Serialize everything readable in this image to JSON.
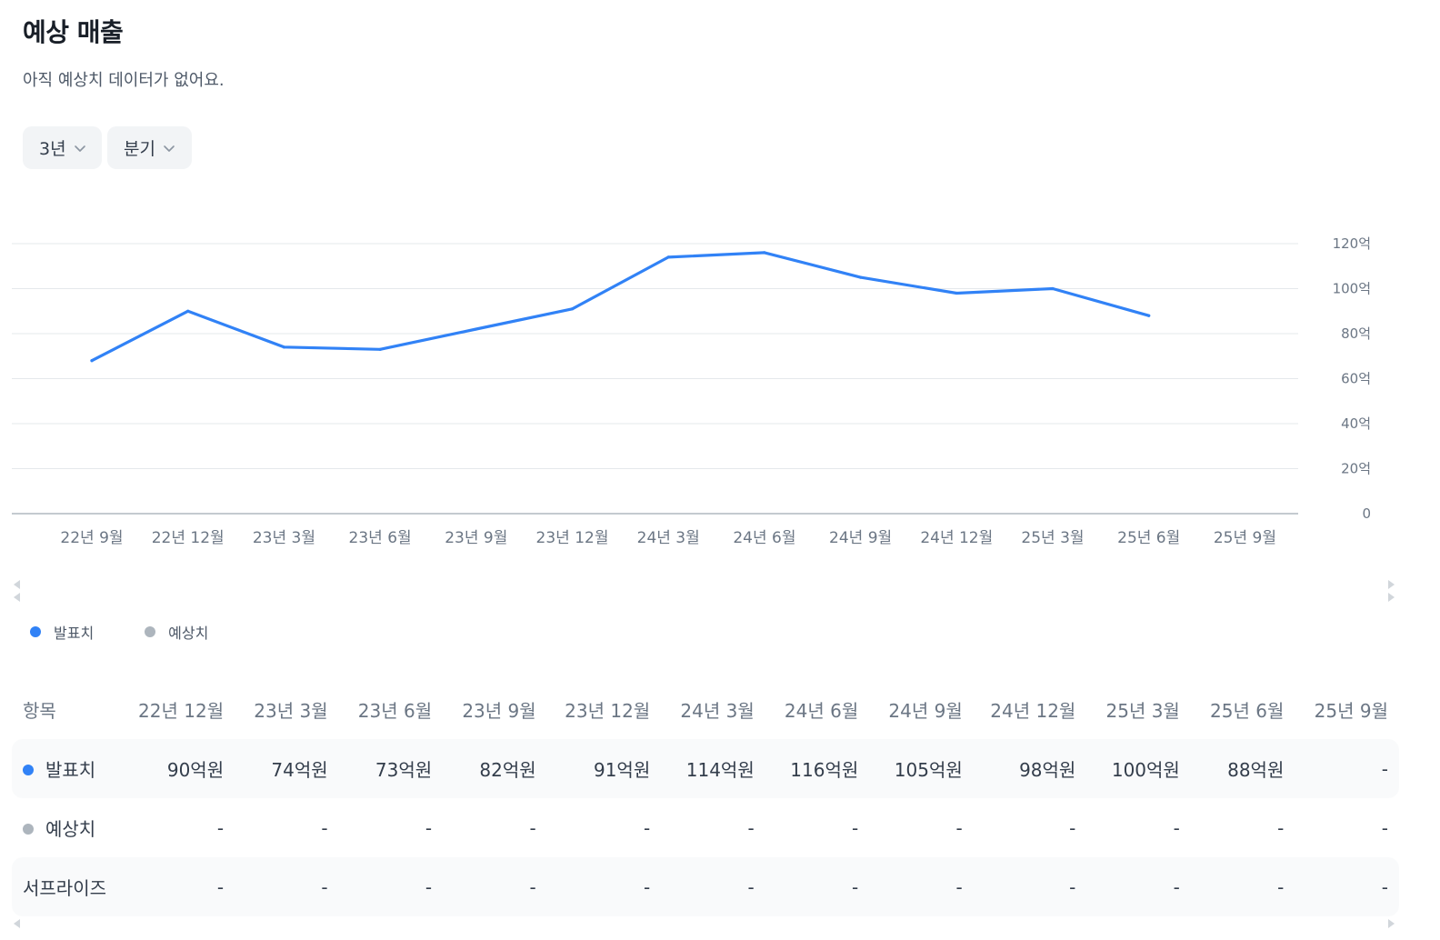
{
  "header": {
    "title": "예상 매출",
    "subtitle": "아직 예상치 데이터가 없어요."
  },
  "filters": {
    "period": "3년",
    "interval": "분기"
  },
  "colors": {
    "actual": "#3182f6",
    "estimate": "#adb5bd",
    "grid": "#e5e8eb",
    "axis": "#b0b8c1"
  },
  "legend": {
    "actual": "발표치",
    "estimate": "예상치"
  },
  "chart_data": {
    "type": "line",
    "x": [
      "22년 9월",
      "22년 12월",
      "23년 3월",
      "23년 6월",
      "23년 9월",
      "23년 12월",
      "24년 3월",
      "24년 6월",
      "24년 9월",
      "24년 12월",
      "25년 3월",
      "25년 6월",
      "25년 9월"
    ],
    "y_ticks": [
      "120억",
      "100억",
      "80억",
      "60억",
      "40억",
      "20억",
      "0"
    ],
    "y_tick_values": [
      120,
      100,
      80,
      60,
      40,
      20,
      0
    ],
    "ylim": [
      0,
      120
    ],
    "y_unit": "억",
    "grid": true,
    "y_axis_position": "right",
    "series": [
      {
        "name": "발표치",
        "values": [
          68,
          90,
          74,
          73,
          82,
          91,
          114,
          116,
          105,
          98,
          100,
          88,
          null
        ]
      },
      {
        "name": "예상치",
        "values": [
          null,
          null,
          null,
          null,
          null,
          null,
          null,
          null,
          null,
          null,
          null,
          null,
          null
        ]
      }
    ]
  },
  "table": {
    "header_label": "항목",
    "columns": [
      "22년 12월",
      "23년 3월",
      "23년 6월",
      "23년 9월",
      "23년 12월",
      "24년 3월",
      "24년 6월",
      "24년 9월",
      "24년 12월",
      "25년 3월",
      "25년 6월",
      "25년 9월"
    ],
    "rows": [
      {
        "label": "발표치",
        "values": [
          "90억원",
          "74억원",
          "73억원",
          "82억원",
          "91억원",
          "114억원",
          "116억원",
          "105억원",
          "98억원",
          "100억원",
          "88억원",
          "-"
        ]
      },
      {
        "label": "예상치",
        "values": [
          "-",
          "-",
          "-",
          "-",
          "-",
          "-",
          "-",
          "-",
          "-",
          "-",
          "-",
          "-"
        ]
      },
      {
        "label": "서프라이즈",
        "values": [
          "-",
          "-",
          "-",
          "-",
          "-",
          "-",
          "-",
          "-",
          "-",
          "-",
          "-",
          "-"
        ]
      }
    ]
  }
}
